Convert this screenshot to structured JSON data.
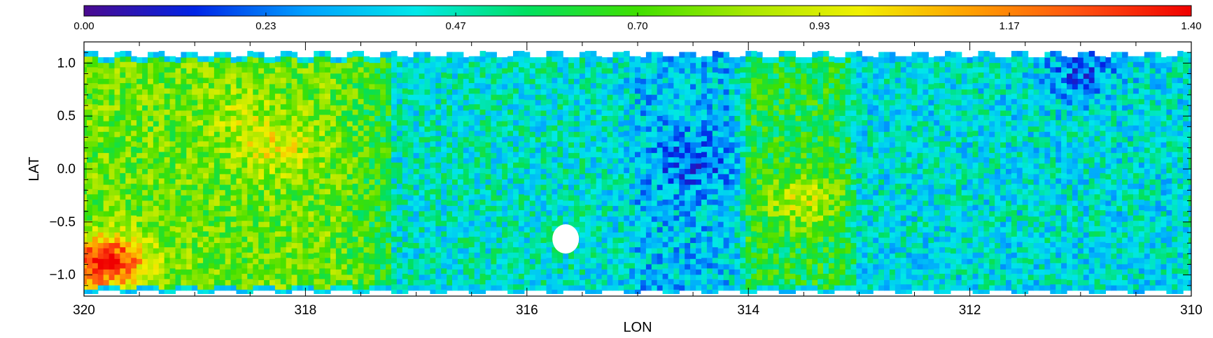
{
  "chart_data": {
    "type": "heatmap",
    "title": "",
    "xlabel": "LON",
    "ylabel": "LAT",
    "xlim": [
      320,
      310
    ],
    "ylim": [
      -1.2,
      1.2
    ],
    "x_ticks": [
      320,
      318,
      316,
      314,
      312,
      310
    ],
    "x_tick_labels": [
      "320",
      "318",
      "316",
      "314",
      "312",
      "310"
    ],
    "y_ticks": [
      -1.0,
      -0.5,
      0.0,
      0.5,
      1.0
    ],
    "y_tick_labels": [
      "−1.0",
      "−0.5",
      "0.0",
      "0.5",
      "1.0"
    ],
    "grid": false,
    "colorbar": {
      "orientation": "horizontal",
      "placement": "top",
      "range": [
        0.0,
        1.4
      ],
      "ticks": [
        0.0,
        0.23,
        0.47,
        0.7,
        0.93,
        1.17,
        1.4
      ],
      "tick_labels": [
        "0.00",
        "0.23",
        "0.47",
        "0.70",
        "0.93",
        "1.17",
        "1.40"
      ],
      "colormap": [
        "#4b0a8f",
        "#0024e6",
        "#00a0ff",
        "#00e8e8",
        "#00e060",
        "#40e000",
        "#a8e800",
        "#f0f000",
        "#ffa000",
        "#ff5010",
        "#f00000"
      ]
    },
    "field_description_regions": [
      {
        "lon_range": [
          320,
          317.2
        ],
        "lat_range": [
          -1.1,
          1.1
        ],
        "approx_value": 0.75
      },
      {
        "lon_range": [
          317.2,
          315.0
        ],
        "lat_range": [
          -1.1,
          1.1
        ],
        "approx_value": 0.45
      },
      {
        "lon_range": [
          315.0,
          314.0
        ],
        "lat_range": [
          -1.1,
          1.1
        ],
        "approx_value": 0.35
      },
      {
        "lon_range": [
          314.0,
          313.0
        ],
        "lat_range": [
          -1.1,
          1.1
        ],
        "approx_value": 0.62
      },
      {
        "lon_range": [
          313.0,
          310
        ],
        "lat_range": [
          -1.1,
          1.1
        ],
        "approx_value": 0.42
      }
    ],
    "hotspots": [
      {
        "lon": 318.25,
        "lat": 0.2,
        "value": 0.95
      },
      {
        "lon": 318.6,
        "lat": 0.5,
        "value": 0.85
      },
      {
        "lon": 319.8,
        "lat": -0.88,
        "value": 1.4
      },
      {
        "lon": 313.5,
        "lat": -0.3,
        "value": 0.9
      },
      {
        "lon": 314.5,
        "lat": 0.05,
        "value": 0.2
      },
      {
        "lon": 311.0,
        "lat": 0.9,
        "value": 0.22
      }
    ],
    "masked": [
      {
        "lon": 315.65,
        "lat": -0.66
      }
    ]
  }
}
